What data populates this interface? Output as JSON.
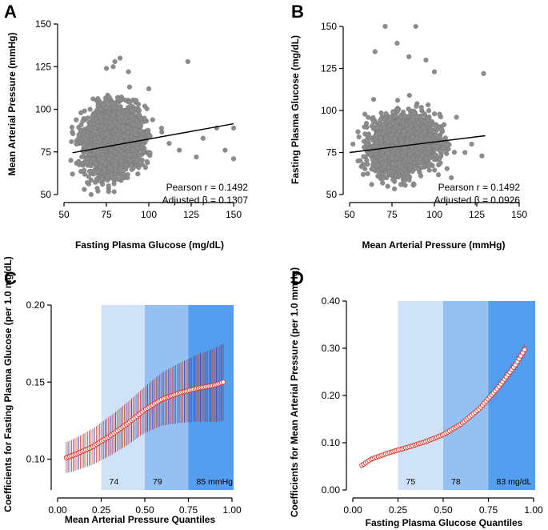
{
  "colors": {
    "scatter_point": "#8c8c8c",
    "scatter_edge": "#6e6e6e",
    "regression_line": "#000000",
    "curve_marker_fill": "#ffffff",
    "curve_marker_edge": "#d9392f",
    "ci_bar": "#c0392b",
    "ci_bar_dense": "#3a2a9a",
    "band_q2": "#cfe2f8",
    "band_q3": "#94c0f2",
    "band_q4": "#549ef0"
  },
  "chart_data": [
    {
      "panel": "A",
      "type": "scatter",
      "xlabel": "Fasting Plasma Glucose (mg/dL)",
      "ylabel": "Mean Arterial Pressure (mmHg)",
      "xlim": [
        50,
        150
      ],
      "ylim": [
        50,
        150
      ],
      "xticks": [
        50,
        75,
        100,
        125,
        150
      ],
      "yticks": [
        50,
        75,
        100,
        125,
        150
      ],
      "center": {
        "x": 79,
        "y": 82
      },
      "spread": {
        "x": 8,
        "y": 9
      },
      "regression": {
        "x": [
          55,
          150
        ],
        "y": [
          74.5,
          91.5
        ]
      },
      "outliers": [
        [
          83,
          130
        ],
        [
          80,
          128
        ],
        [
          79,
          125
        ],
        [
          75,
          124
        ],
        [
          123,
          128
        ],
        [
          88,
          122
        ],
        [
          140,
          89
        ],
        [
          150,
          71
        ],
        [
          150,
          89
        ],
        [
          145,
          76
        ],
        [
          55,
          62
        ],
        [
          62,
          53
        ],
        [
          70,
          52
        ],
        [
          66,
          50
        ],
        [
          132,
          83
        ],
        [
          128,
          72
        ],
        [
          112,
          80
        ],
        [
          118,
          76
        ],
        [
          100,
          112
        ],
        [
          60,
          98
        ]
      ],
      "annotation": [
        "Pearson r = 0.1492",
        "Adjusted β  = 0.1307"
      ]
    },
    {
      "panel": "B",
      "type": "scatter",
      "xlabel": "Mean Arterial Pressure (mmHg)",
      "ylabel": "Fasting Plasma Glucose (mg/dL)",
      "xlim": [
        50,
        150
      ],
      "ylim": [
        50,
        150
      ],
      "xticks": [
        50,
        75,
        100,
        125,
        150
      ],
      "yticks": [
        50,
        75,
        100,
        125,
        150
      ],
      "center": {
        "x": 82,
        "y": 80
      },
      "spread": {
        "x": 9,
        "y": 8
      },
      "regression": {
        "x": [
          50,
          130
        ],
        "y": [
          75,
          85
        ]
      },
      "outliers": [
        [
          71,
          150
        ],
        [
          89,
          150
        ],
        [
          78,
          140
        ],
        [
          85,
          132
        ],
        [
          65,
          135
        ],
        [
          129,
          122
        ],
        [
          100,
          123
        ],
        [
          95,
          130
        ],
        [
          128,
          73
        ],
        [
          122,
          80
        ],
        [
          113,
          96
        ],
        [
          52,
          80
        ],
        [
          55,
          70
        ],
        [
          58,
          62
        ],
        [
          63,
          56
        ],
        [
          88,
          56
        ],
        [
          110,
          60
        ],
        [
          118,
          75
        ]
      ],
      "annotation": [
        "Pearson r = 0.1492",
        "Adjusted β  = 0.0926"
      ]
    },
    {
      "panel": "C",
      "type": "line",
      "xlabel": "Mean Arterial Pressure Quantiles",
      "ylabel": "Coefficients for Fasting Plasma Glucose (per 1.0 mg/dL)",
      "xlim": [
        0,
        1
      ],
      "ylim": [
        0.08,
        0.2
      ],
      "xticks": [
        0.0,
        0.25,
        0.5,
        0.75,
        1.0
      ],
      "yticks": [
        0.1,
        0.15,
        0.2
      ],
      "quantiles": [
        0.05,
        0.95
      ],
      "coef_knots": {
        "q": [
          0.05,
          0.1,
          0.2,
          0.3,
          0.4,
          0.5,
          0.6,
          0.7,
          0.8,
          0.9,
          0.95
        ],
        "v": [
          0.101,
          0.103,
          0.108,
          0.115,
          0.123,
          0.132,
          0.139,
          0.143,
          0.146,
          0.148,
          0.15
        ]
      },
      "ci_halfwidth": {
        "q": [
          0.05,
          0.5,
          0.95
        ],
        "v": [
          0.01,
          0.015,
          0.025
        ]
      },
      "bands": [
        {
          "from": 0.25,
          "to": 0.5,
          "label": "74"
        },
        {
          "from": 0.5,
          "to": 0.75,
          "label": "79"
        },
        {
          "from": 0.75,
          "to": 0.95,
          "label": "85 mmHg"
        }
      ]
    },
    {
      "panel": "D",
      "type": "line",
      "xlabel": "Fasting Plasma Glucose Quantiles",
      "ylabel": "Coefficients for Mean Arterial Pressure (per 1.0 mmHg)",
      "xlim": [
        0,
        1
      ],
      "ylim": [
        0,
        0.4
      ],
      "xticks": [
        0.0,
        0.25,
        0.5,
        0.75,
        1.0
      ],
      "yticks": [
        0.0,
        0.1,
        0.2,
        0.3,
        0.4
      ],
      "quantiles": [
        0.05,
        0.95
      ],
      "coef_knots": {
        "q": [
          0.05,
          0.1,
          0.2,
          0.3,
          0.4,
          0.5,
          0.6,
          0.7,
          0.8,
          0.9,
          0.95
        ],
        "v": [
          0.052,
          0.065,
          0.079,
          0.09,
          0.102,
          0.117,
          0.14,
          0.172,
          0.215,
          0.265,
          0.297
        ]
      },
      "ci_halfwidth": {
        "q": [
          0.05,
          0.5,
          0.95
        ],
        "v": [
          0.004,
          0.004,
          0.012
        ]
      },
      "bands": [
        {
          "from": 0.25,
          "to": 0.5,
          "label": "75"
        },
        {
          "from": 0.5,
          "to": 0.75,
          "label": "78"
        },
        {
          "from": 0.75,
          "to": 0.95,
          "label": "83 mg/dL"
        }
      ]
    }
  ]
}
